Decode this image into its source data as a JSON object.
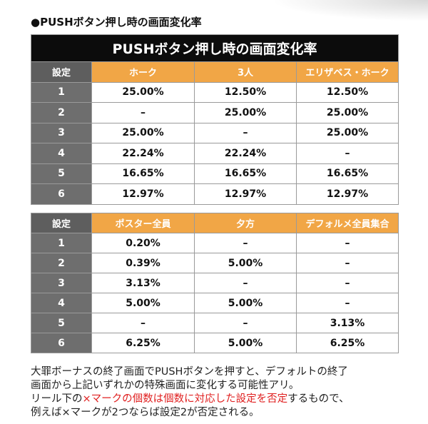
{
  "heading": "●PUSHボタン押し時の画面変化率",
  "tables": [
    {
      "title": "PUSHボタン押し時の画面変化率",
      "columns": [
        "設定",
        "ホーク",
        "3人",
        "エリザベス・ホーク"
      ],
      "rows": [
        [
          "1",
          "25.00%",
          "12.50%",
          "12.50%"
        ],
        [
          "2",
          "–",
          "25.00%",
          "25.00%"
        ],
        [
          "3",
          "25.00%",
          "–",
          "25.00%"
        ],
        [
          "4",
          "22.24%",
          "22.24%",
          "–"
        ],
        [
          "5",
          "16.65%",
          "16.65%",
          "16.65%"
        ],
        [
          "6",
          "12.97%",
          "12.97%",
          "12.97%"
        ]
      ]
    },
    {
      "columns": [
        "設定",
        "ポスター全員",
        "夕方",
        "デフォルメ全員集合"
      ],
      "rows": [
        [
          "1",
          "0.20%",
          "–",
          "–"
        ],
        [
          "2",
          "0.39%",
          "5.00%",
          "–"
        ],
        [
          "3",
          "3.13%",
          "–",
          "–"
        ],
        [
          "4",
          "5.00%",
          "5.00%",
          "–"
        ],
        [
          "5",
          "–",
          "–",
          "3.13%"
        ],
        [
          "6",
          "6.25%",
          "5.00%",
          "6.25%"
        ]
      ]
    }
  ],
  "note": {
    "lines": [
      [
        {
          "text": "大罪ボーナスの終了画面でPUSHボタンを押すと、デフォルトの終了",
          "color": "#222222"
        }
      ],
      [
        {
          "text": "画面から上記いずれかの特殊画面に変化する可能性アリ。",
          "color": "#222222"
        }
      ],
      [
        {
          "text": "リール下の",
          "color": "#222222"
        },
        {
          "text": "×マークの個数は個数に対応した設定を否定",
          "color": "#e02020"
        },
        {
          "text": "するもので、",
          "color": "#222222"
        }
      ],
      [
        {
          "text": "例えば×マークが2つならば設定2が否定される。",
          "color": "#222222"
        }
      ]
    ]
  }
}
